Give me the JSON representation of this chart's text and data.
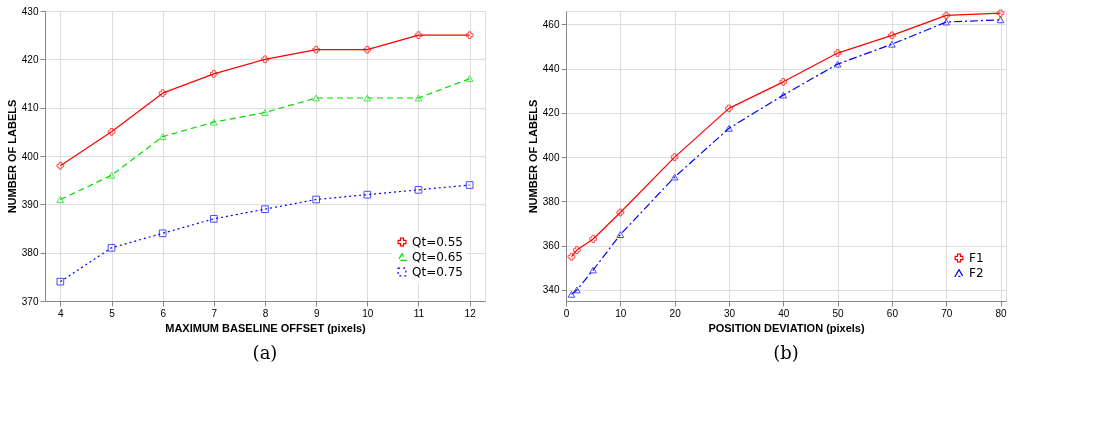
{
  "chart_data": [
    {
      "type": "line",
      "xlabel": "MAXIMUM BASELINE OFFSET (pixels)",
      "ylabel": "NUMBER OF LABELS",
      "annotations": [
        "(a)"
      ],
      "x": [
        4,
        5,
        6,
        7,
        8,
        9,
        10,
        11,
        12
      ],
      "xlim": [
        3.7,
        12.3
      ],
      "xticks": [
        4,
        5,
        6,
        7,
        8,
        9,
        10,
        11,
        12
      ],
      "ylim": [
        370,
        430
      ],
      "yticks": [
        370,
        380,
        390,
        400,
        410,
        420,
        430
      ],
      "grid": true,
      "legend": "bottom right",
      "series": [
        {
          "name": "Qt=0.55",
          "color": "#ff0000",
          "marker": "cross",
          "line_style": "solid",
          "values": [
            398,
            405,
            413,
            417,
            420,
            422,
            422,
            425,
            425
          ]
        },
        {
          "name": "Qt=0.65",
          "color": "#00dd00",
          "marker": "triangle",
          "line_style": "dashed",
          "values": [
            391,
            396,
            404,
            407,
            409,
            412,
            412,
            412,
            416
          ]
        },
        {
          "name": "Qt=0.75",
          "color": "#0000ff",
          "marker": "square",
          "line_style": "dotted",
          "values": [
            374,
            381,
            384,
            387,
            389,
            391,
            392,
            393,
            394
          ]
        }
      ]
    },
    {
      "type": "line",
      "xlabel": "POSITION DEVIATION (pixels)",
      "ylabel": "NUMBER OF LABELS",
      "annotations": [
        "(b)"
      ],
      "x": [
        1,
        2,
        5,
        10,
        20,
        30,
        40,
        50,
        60,
        70,
        80
      ],
      "xlim": [
        0,
        81
      ],
      "xticks": [
        0,
        10,
        20,
        30,
        40,
        50,
        60,
        70,
        80
      ],
      "ylim": [
        335,
        466
      ],
      "yticks": [
        340,
        360,
        380,
        400,
        420,
        440,
        460
      ],
      "grid": true,
      "legend": "bottom right",
      "series": [
        {
          "name": "F1",
          "color": "#ff0000",
          "marker": "cross",
          "line_style": "solid",
          "values": [
            355,
            358,
            363,
            375,
            400,
            422,
            434,
            447,
            455,
            464,
            465
          ]
        },
        {
          "name": "F2",
          "color": "#0000ff",
          "marker": "triangle",
          "line_style": "dashdot",
          "values": [
            338,
            340,
            349,
            365,
            391,
            413,
            428,
            442,
            451,
            461,
            462
          ]
        }
      ]
    }
  ]
}
